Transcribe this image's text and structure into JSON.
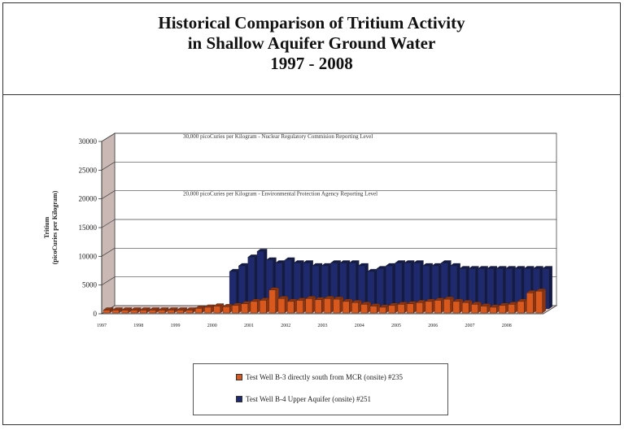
{
  "title": {
    "line1": "Historical Comparison of Tritium Activity",
    "line2": "in Shallow Aquifer Ground Water",
    "line3": "1997 - 2008"
  },
  "colors": {
    "well_b3": "#d9581e",
    "well_b4": "#1f2a6e",
    "wall": "#c9b8b4",
    "floor": "#d9c3bf"
  },
  "chart_data": {
    "type": "bar",
    "ylabel_line1": "Tritium",
    "ylabel_line2": "(picoCuries per Kilogram)",
    "ylim": [
      0,
      30000
    ],
    "y_ticks": [
      "0",
      "5000",
      "10000",
      "15000",
      "20000",
      "25000",
      "30000"
    ],
    "x_tick_labels": [
      "1997",
      "1998",
      "1999",
      "2000",
      "2001",
      "2002",
      "2003",
      "2004",
      "2005",
      "2006",
      "2007",
      "2008"
    ],
    "x_range": [
      1997,
      2009
    ],
    "grid": true,
    "annotations": [
      {
        "text": "30,000 picoCuries per Kilogram - Nuclear Regulatory Commision Reporting Level",
        "y": 30000
      },
      {
        "text": "20,000 picoCuries per Kilogram - Environmental Protection Agency Reporting Level",
        "y": 20000
      }
    ],
    "series": [
      {
        "name": "Test Well B-3 directly south from MCR (onsite) #235",
        "x": [
          1997.0,
          1997.25,
          1997.5,
          1997.75,
          1998.0,
          1998.25,
          1998.5,
          1998.75,
          1999.0,
          1999.25,
          1999.5,
          1999.75,
          2000.0,
          2000.25,
          2000.5,
          2000.75,
          2001.0,
          2001.25,
          2001.5,
          2001.75,
          2002.0,
          2002.25,
          2002.5,
          2002.75,
          2003.0,
          2003.25,
          2003.5,
          2003.75,
          2004.0,
          2004.25,
          2004.5,
          2004.75,
          2005.0,
          2005.25,
          2005.5,
          2005.75,
          2006.0,
          2006.25,
          2006.5,
          2006.75,
          2007.0,
          2007.25,
          2007.5,
          2007.75,
          2008.0,
          2008.25,
          2008.5,
          2008.75
        ],
        "values": [
          500,
          500,
          500,
          500,
          500,
          500,
          500,
          500,
          500,
          500,
          800,
          1000,
          1200,
          1100,
          1300,
          1600,
          2000,
          2200,
          4000,
          2500,
          2000,
          2200,
          2500,
          2300,
          2500,
          2400,
          2000,
          1800,
          1500,
          1200,
          1000,
          1300,
          1500,
          1600,
          1800,
          2000,
          2200,
          2400,
          2000,
          1800,
          1500,
          1200,
          1000,
          1300,
          1500,
          2000,
          3500,
          3800
        ]
      },
      {
        "name": "Test Well B-4 Upper Aquifer (onsite) #251",
        "x": [
          2000.25,
          2000.5,
          2000.75,
          2001.0,
          2001.25,
          2001.5,
          2001.75,
          2002.0,
          2002.25,
          2002.5,
          2002.75,
          2003.0,
          2003.25,
          2003.5,
          2003.75,
          2004.0,
          2004.25,
          2004.5,
          2004.75,
          2005.0,
          2005.25,
          2005.5,
          2005.75,
          2006.0,
          2006.25,
          2006.5,
          2006.75,
          2007.0,
          2007.25,
          2007.5,
          2007.75,
          2008.0,
          2008.25,
          2008.5,
          2008.75
        ],
        "values": [
          6500,
          7500,
          9000,
          10000,
          8500,
          8000,
          8500,
          8000,
          8000,
          7500,
          7500,
          8000,
          8000,
          8000,
          7500,
          6500,
          7000,
          7500,
          8000,
          8000,
          8000,
          7500,
          7500,
          8000,
          7500,
          7000,
          7000,
          7000,
          7000,
          7000,
          7000,
          7000,
          7000,
          7000,
          7000
        ]
      }
    ]
  }
}
